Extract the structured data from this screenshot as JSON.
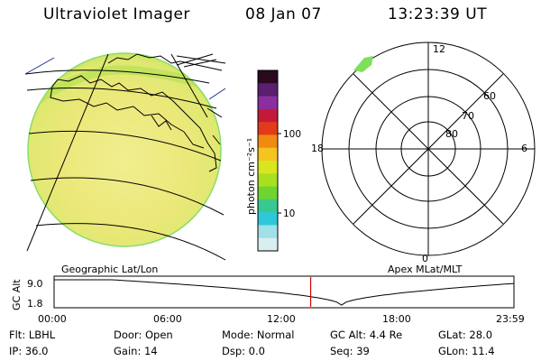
{
  "header": {
    "instrument": "Ultraviolet Imager",
    "date": "08 Jan 07",
    "time": "13:23:39 UT"
  },
  "colorbar": {
    "unit_label": "photon cm⁻²s⁻¹",
    "ticks": [
      "100",
      "10"
    ],
    "colors": [
      "#2a0a1e",
      "#5a1f6e",
      "#8a2fa0",
      "#c41a3a",
      "#e23a1a",
      "#f08a10",
      "#f4c420",
      "#d8e620",
      "#a8e020",
      "#6fd430",
      "#38c890",
      "#2ec8d8",
      "#a0e0e8",
      "#d8eef0"
    ]
  },
  "polar_plot": {
    "mlt_labels": {
      "top": "12",
      "bottom": "0",
      "left": "18",
      "right": "6"
    },
    "mlat_labels": [
      "60",
      "70",
      "80"
    ]
  },
  "altitude_panel": {
    "left_title": "Geographic Lat/Lon",
    "right_title": "Apex MLat/MLT",
    "axis_label": "GC Alt",
    "y_ticks": [
      "9.0",
      "1.8"
    ],
    "x_ticks": [
      "00:00",
      "06:00",
      "12:00",
      "18:00",
      "23:59"
    ],
    "current_time_hours": 13.39,
    "marker_color": "#d00000"
  },
  "status": {
    "row1": [
      {
        "key": "filter",
        "text": "Flt: LBHL"
      },
      {
        "key": "door",
        "text": "Door: Open"
      },
      {
        "key": "mode",
        "text": "Mode: Normal"
      },
      {
        "key": "gc_alt",
        "text": "GC Alt: 4.4 Re"
      },
      {
        "key": "glat",
        "text": "GLat: 28.0"
      }
    ],
    "row2": [
      {
        "key": "ip",
        "text": "IP: 36.0"
      },
      {
        "key": "gain",
        "text": "Gain: 14"
      },
      {
        "key": "dsp",
        "text": "Dsp:     0.0"
      },
      {
        "key": "seq",
        "text": "Seq: 39"
      },
      {
        "key": "glon",
        "text": "GLon: 11.4"
      }
    ]
  }
}
